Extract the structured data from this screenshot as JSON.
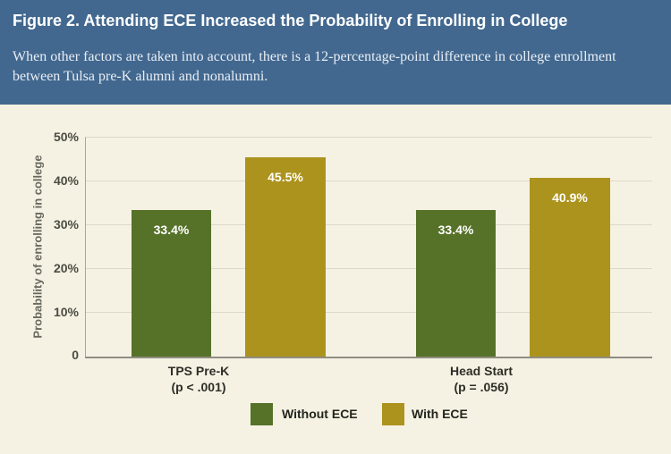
{
  "header": {
    "title": "Figure 2. Attending ECE Increased the Probability of Enrolling in College",
    "subtitle": "When other factors are taken into account, there is a 12-percentage-point difference in college enrollment between Tulsa pre-K alumni and nonalumni.",
    "background": "#42688f"
  },
  "chart_data": {
    "type": "bar",
    "title": "Figure 2. Attending ECE Increased the Probability of Enrolling in College",
    "ylabel": "Probability of enrolling in college",
    "xlabel": "",
    "ylim": [
      0,
      50
    ],
    "yticks": [
      "50%",
      "40%",
      "30%",
      "20%",
      "10%",
      "0"
    ],
    "grid": true,
    "legend_position": "bottom",
    "categories": [
      {
        "label": "TPS Pre-K",
        "sublabel": "(p < .001)"
      },
      {
        "label": "Head Start",
        "sublabel": "(p = .056)"
      }
    ],
    "series": [
      {
        "name": "Without ECE",
        "color": "#567229",
        "values": [
          33.4,
          33.4
        ],
        "labels": [
          "33.4%",
          "33.4%"
        ]
      },
      {
        "name": "With ECE",
        "color": "#ac931d",
        "values": [
          45.5,
          40.9
        ],
        "labels": [
          "45.5%",
          "40.9%"
        ]
      }
    ]
  },
  "colors": {
    "chart_background": "#f5f2e3",
    "gridline": "#dcd9ca",
    "axis_line": "#8f8d81"
  }
}
